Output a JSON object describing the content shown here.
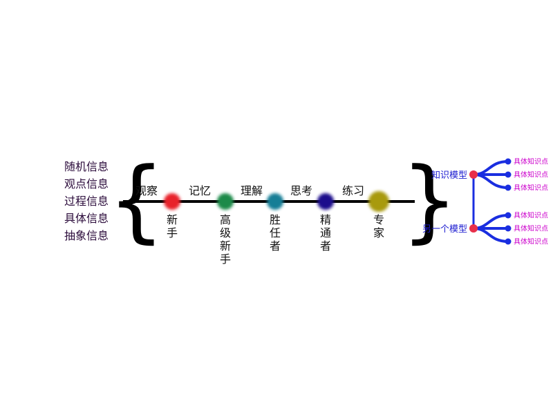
{
  "sources": [
    "随机信息",
    "观点信息",
    "过程信息",
    "具体信息",
    "抽象信息"
  ],
  "actions": [
    "观察",
    "记忆",
    "理解",
    "思考",
    "练习"
  ],
  "stages": [
    {
      "label": "新手",
      "color": "#e8232a"
    },
    {
      "label": "高级新手",
      "color": "#1a8a4a"
    },
    {
      "label": "胜任者",
      "color": "#137e96"
    },
    {
      "label": "精通者",
      "color": "#1a0a8c"
    },
    {
      "label": "专家",
      "color": "#a89a10"
    }
  ],
  "models": [
    {
      "label": "知识模型",
      "leaves": [
        "具体知识点",
        "具体知识点",
        "具体知识点"
      ]
    },
    {
      "label": "另一个模型",
      "leaves": [
        "具体知识点",
        "具体知识点",
        "具体知识点"
      ]
    }
  ],
  "colors": {
    "node_hub": "#e8304a",
    "branch": "#1a2ee0",
    "leaf_dot": "#1a2ee0",
    "leaf_text": "#cc00cc",
    "model_text": "#1a1ad0"
  }
}
